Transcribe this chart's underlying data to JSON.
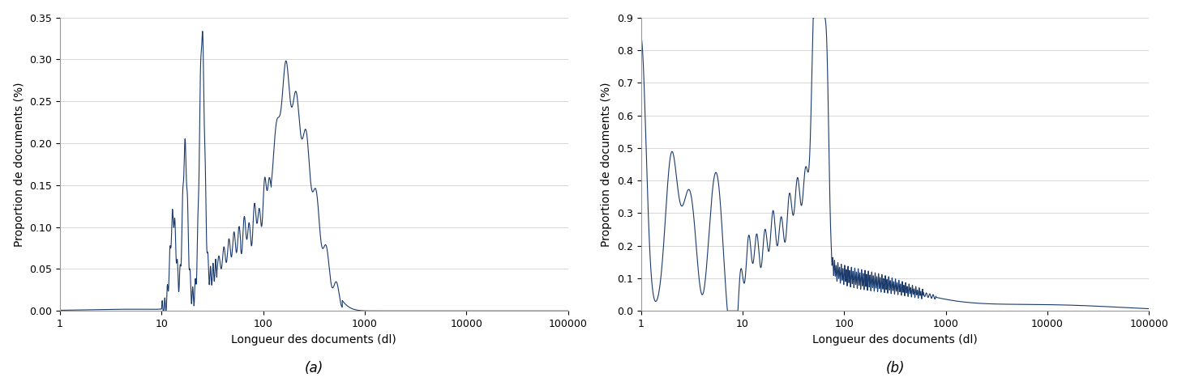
{
  "fig_width": 14.58,
  "fig_height": 4.82,
  "dpi": 100,
  "line_color": "#1a3a6b",
  "line_width": 0.8,
  "background_color": "#ffffff",
  "ylabel": "Proportion de documents (%)",
  "xlabel": "Longueur des documents (dl)",
  "label_a": "(a)",
  "label_b": "(b)",
  "plot_a": {
    "xlim": [
      1,
      100000
    ],
    "ylim": [
      0,
      0.35
    ],
    "yticks": [
      0,
      0.05,
      0.1,
      0.15,
      0.2,
      0.25,
      0.3,
      0.35
    ],
    "xticks": [
      1,
      10,
      100,
      1000,
      10000,
      100000
    ]
  },
  "plot_b": {
    "xlim": [
      1,
      100000
    ],
    "ylim": [
      0,
      0.9
    ],
    "yticks": [
      0,
      0.1,
      0.2,
      0.3,
      0.4,
      0.5,
      0.6,
      0.7,
      0.8,
      0.9
    ],
    "xticks": [
      1,
      10,
      100,
      1000,
      10000,
      100000
    ]
  }
}
